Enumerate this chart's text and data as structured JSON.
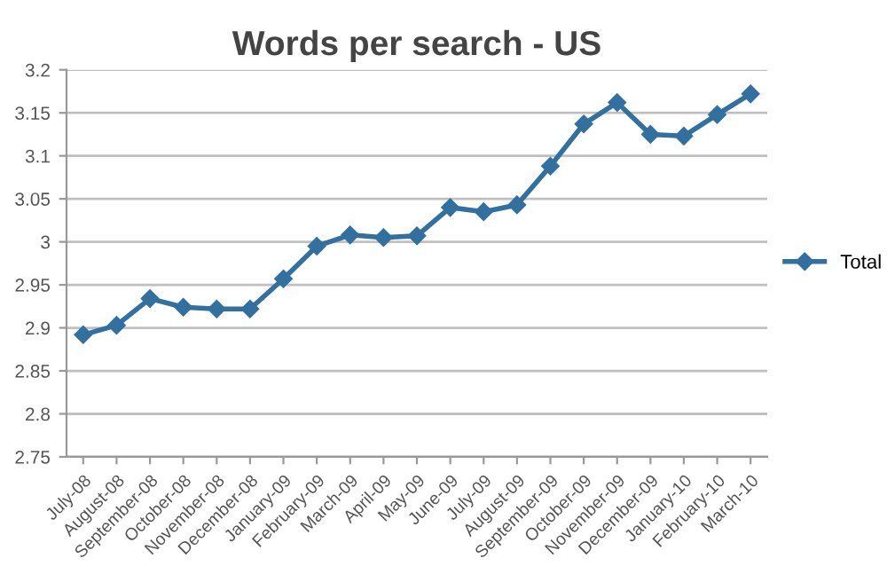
{
  "chart_data": {
    "type": "line",
    "title": "Words per search - US",
    "categories": [
      "July-08",
      "August-08",
      "September-08",
      "October-08",
      "November-08",
      "December-08",
      "January-09",
      "February-09",
      "March-09",
      "April-09",
      "May-09",
      "June-09",
      "July-09",
      "August-09",
      "September-09",
      "October-09",
      "November-09",
      "December-09",
      "January-10",
      "February-10",
      "March-10"
    ],
    "series": [
      {
        "name": "Total",
        "color": "#31709f",
        "values": [
          2.892,
          2.903,
          2.934,
          2.924,
          2.922,
          2.922,
          2.957,
          2.995,
          3.008,
          3.005,
          3.007,
          3.04,
          3.035,
          3.043,
          3.088,
          3.137,
          3.162,
          3.125,
          3.123,
          3.148,
          3.172
        ]
      }
    ],
    "ylim": [
      2.75,
      3.2
    ],
    "yticks": [
      2.75,
      2.8,
      2.85,
      2.9,
      2.95,
      3,
      3.05,
      3.1,
      3.15,
      3.2
    ],
    "grid": "y",
    "legend": "right",
    "marker": "diamond",
    "line_style": "solid"
  }
}
